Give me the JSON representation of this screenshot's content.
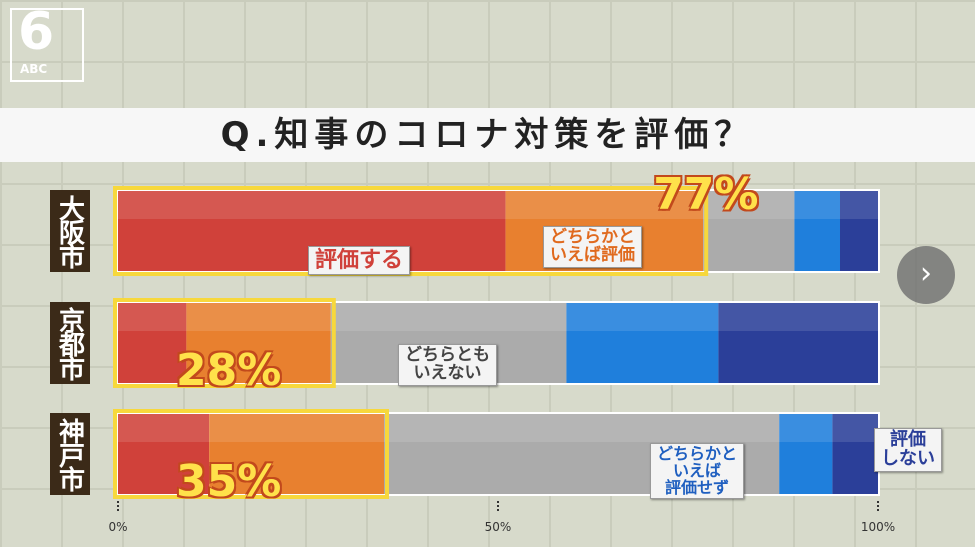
{
  "chart_data": {
    "type": "stacked-bar-horizontal",
    "title": "Q.知事のコロナ対策を評価？",
    "logo": {
      "number": "6",
      "text": "ABC"
    },
    "categories": [
      "大阪市",
      "京都市",
      "神戸市"
    ],
    "series": [
      {
        "name": "評価する",
        "color": "#d0413a",
        "values": [
          51,
          9,
          12
        ]
      },
      {
        "name": "どちらかと\nいえば評価",
        "color": "#e8802f",
        "values": [
          26,
          19,
          23
        ]
      },
      {
        "name": "どちらとも\nいえない",
        "color": "#ababab",
        "values": [
          12,
          31,
          52
        ]
      },
      {
        "name": "どちらかと\nいえば\n評価せず",
        "color": "#1f7fdc",
        "values": [
          6,
          20,
          7
        ]
      },
      {
        "name": "評価\nしない",
        "color": "#2b3f99",
        "values": [
          5,
          21,
          6
        ]
      }
    ],
    "totals": [
      {
        "value": 77,
        "label": "77%"
      },
      {
        "value": 28,
        "label": "28%"
      },
      {
        "value": 35,
        "label": "35%"
      }
    ],
    "xlim": [
      0,
      100
    ],
    "xticks": [
      {
        "value": 0,
        "label": "0%"
      },
      {
        "value": 50,
        "label": "50%"
      },
      {
        "value": 100,
        "label": "100%"
      }
    ]
  }
}
